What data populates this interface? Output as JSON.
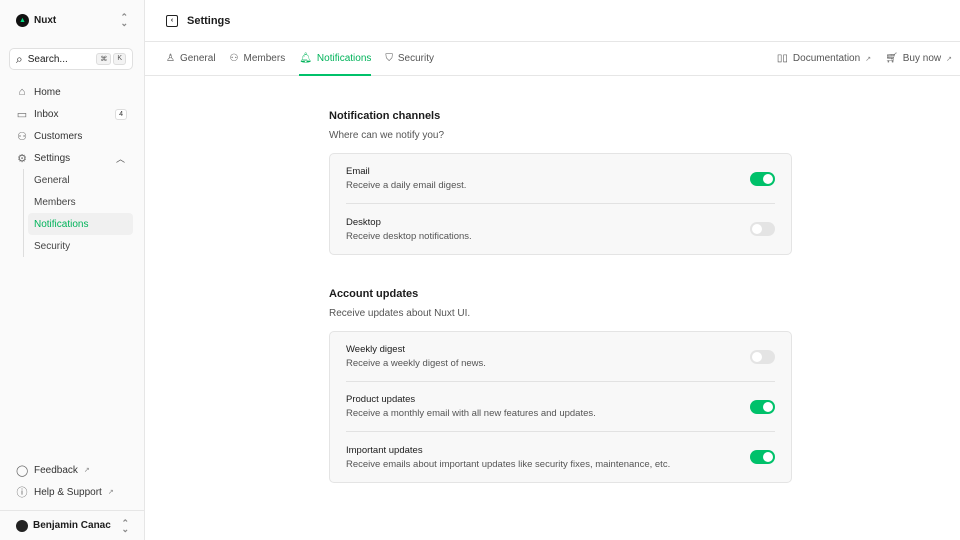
{
  "sidebar": {
    "team": "Nuxt",
    "search_placeholder": "Search...",
    "kbd": [
      "⌘",
      "K"
    ],
    "items": [
      {
        "label": "Home",
        "icon": "home-icon"
      },
      {
        "label": "Inbox",
        "icon": "inbox-icon",
        "badge": "4"
      },
      {
        "label": "Customers",
        "icon": "users-icon"
      },
      {
        "label": "Settings",
        "icon": "gear-icon"
      }
    ],
    "settings_sub": [
      "General",
      "Members",
      "Notifications",
      "Security"
    ],
    "footer": [
      {
        "label": "Feedback",
        "icon": "chat-icon"
      },
      {
        "label": "Help & Support",
        "icon": "info-icon"
      }
    ],
    "user": "Benjamin Canac"
  },
  "header": {
    "title": "Settings"
  },
  "tabs": [
    "General",
    "Members",
    "Notifications",
    "Security"
  ],
  "active_tab": "Notifications",
  "links": [
    "Documentation",
    "Buy now"
  ],
  "accent": "#00C16A",
  "sections": [
    {
      "title": "Notification channels",
      "subtitle": "Where can we notify you?",
      "rows": [
        {
          "label": "Email",
          "desc": "Receive a daily email digest.",
          "on": true
        },
        {
          "label": "Desktop",
          "desc": "Receive desktop notifications.",
          "on": false
        }
      ]
    },
    {
      "title": "Account updates",
      "subtitle": "Receive updates about Nuxt UI.",
      "rows": [
        {
          "label": "Weekly digest",
          "desc": "Receive a weekly digest of news.",
          "on": false
        },
        {
          "label": "Product updates",
          "desc": "Receive a monthly email with all new features and updates.",
          "on": true
        },
        {
          "label": "Important updates",
          "desc": "Receive emails about important updates like security fixes, maintenance, etc.",
          "on": true
        }
      ]
    }
  ]
}
